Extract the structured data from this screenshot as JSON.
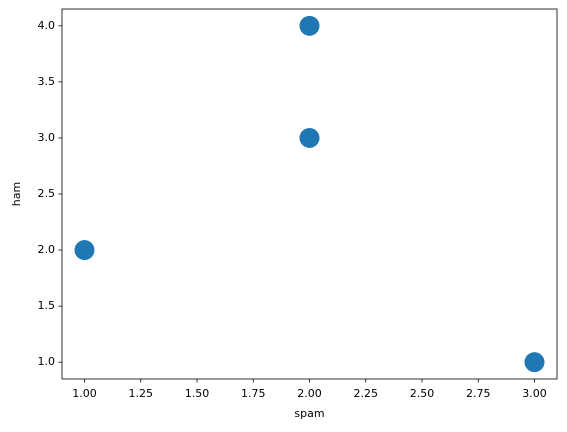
{
  "chart_data": {
    "type": "scatter",
    "x_label": "spam",
    "y_label": "ham",
    "series": [
      {
        "color": "#1f77b4",
        "x": [
          1,
          2,
          2,
          3
        ],
        "values": [
          2,
          3,
          4,
          1
        ]
      }
    ],
    "xlim": [
      0.9,
      3.1
    ],
    "xticks": [
      {
        "value": 1,
        "label": "1.00"
      },
      {
        "value": 1.25,
        "label": "1.25"
      },
      {
        "value": 1.5,
        "label": "1.50"
      },
      {
        "value": 1.75,
        "label": "1.75"
      },
      {
        "value": 2,
        "label": "2.00"
      },
      {
        "value": 2.25,
        "label": "2.25"
      },
      {
        "value": 2.5,
        "label": "2.50"
      },
      {
        "value": 2.75,
        "label": "2.75"
      },
      {
        "value": 3,
        "label": "3.00"
      }
    ],
    "ylim": [
      0.85,
      4.15
    ],
    "yticks": [
      {
        "value": 1,
        "label": "1.0"
      },
      {
        "value": 1.5,
        "label": "1.5"
      },
      {
        "value": 2,
        "label": "2.0"
      },
      {
        "value": 2.5,
        "label": "2.5"
      },
      {
        "value": 3,
        "label": "3.0"
      },
      {
        "value": 3.5,
        "label": "3.5"
      },
      {
        "value": 4,
        "label": "4.0"
      }
    ],
    "grid": false
  }
}
